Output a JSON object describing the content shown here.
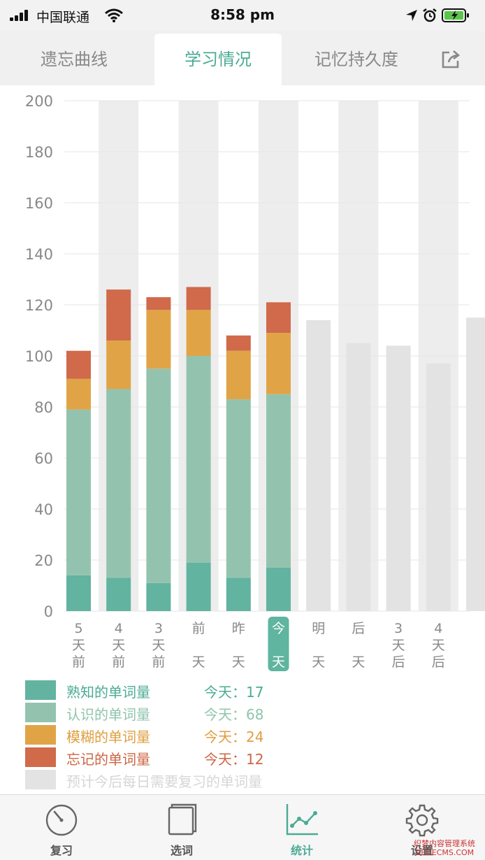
{
  "status_bar": {
    "carrier": "中国联通",
    "time": "8:58 pm"
  },
  "top_tabs": [
    {
      "label": "遗忘曲线",
      "active": false
    },
    {
      "label": "学习情况",
      "active": true
    },
    {
      "label": "记忆持久度",
      "active": false
    }
  ],
  "chart_data": {
    "type": "bar",
    "stacked": true,
    "ylim": [
      0,
      200
    ],
    "yticks": [
      0,
      20,
      40,
      60,
      80,
      100,
      120,
      140,
      160,
      180,
      200
    ],
    "categories": [
      [
        "5",
        "天",
        "前"
      ],
      [
        "4",
        "天",
        "前"
      ],
      [
        "3",
        "天",
        "前"
      ],
      [
        "前",
        "",
        "天"
      ],
      [
        "昨",
        "",
        "天"
      ],
      [
        "今",
        "",
        "天"
      ],
      [
        "明",
        "",
        "天"
      ],
      [
        "后",
        "",
        "天"
      ],
      [
        "3",
        "天",
        "后"
      ],
      [
        "4",
        "天",
        "后"
      ],
      [
        "",
        "",
        ""
      ]
    ],
    "highlight_index": 5,
    "series": [
      {
        "name": "熟知的单词量",
        "color": "#62b3a0",
        "values": [
          14,
          13,
          11,
          19,
          13,
          17,
          0,
          0,
          0,
          0,
          0
        ]
      },
      {
        "name": "认识的单词量",
        "color": "#93c3ae",
        "values": [
          65,
          74,
          84,
          81,
          70,
          68,
          0,
          0,
          0,
          0,
          0
        ]
      },
      {
        "name": "模糊的单词量",
        "color": "#e0a446",
        "values": [
          12,
          19,
          23,
          18,
          19,
          24,
          0,
          0,
          0,
          0,
          0
        ]
      },
      {
        "name": "忘记的单词量",
        "color": "#d06a4a",
        "values": [
          11,
          20,
          5,
          9,
          6,
          12,
          0,
          0,
          0,
          0,
          0
        ]
      },
      {
        "name": "预计今后每日需要复习的单词量",
        "color": "#e3e3e3",
        "values": [
          0,
          0,
          0,
          0,
          0,
          0,
          114,
          105,
          104,
          97,
          115
        ]
      }
    ]
  },
  "legend": [
    {
      "label": "熟知的单词量",
      "value": "今天：17",
      "color": "#62b3a0",
      "text_color": "#4bab94"
    },
    {
      "label": "认识的单词量",
      "value": "今天：68",
      "color": "#93c3ae",
      "text_color": "#8fc4ad"
    },
    {
      "label": "模糊的单词量",
      "value": "今天：24",
      "color": "#e0a446",
      "text_color": "#df9e3e"
    },
    {
      "label": "忘记的单词量",
      "value": "今天：12",
      "color": "#d06a4a",
      "text_color": "#cc6644"
    },
    {
      "label": "预计今后每日需要复习的单词量",
      "value": "",
      "color": "#e3e3e3",
      "text_color": "#d6d6d6"
    }
  ],
  "bottom_nav": [
    {
      "label": "复习",
      "icon": "gauge-icon",
      "active": false
    },
    {
      "label": "选词",
      "icon": "book-icon",
      "active": false
    },
    {
      "label": "统计",
      "icon": "line-chart-icon",
      "active": true
    },
    {
      "label": "设置",
      "icon": "gear-icon",
      "active": false
    }
  ],
  "watermark": {
    "line1": "织梦内容管理系统",
    "line2": "DEDECMS.COM"
  }
}
